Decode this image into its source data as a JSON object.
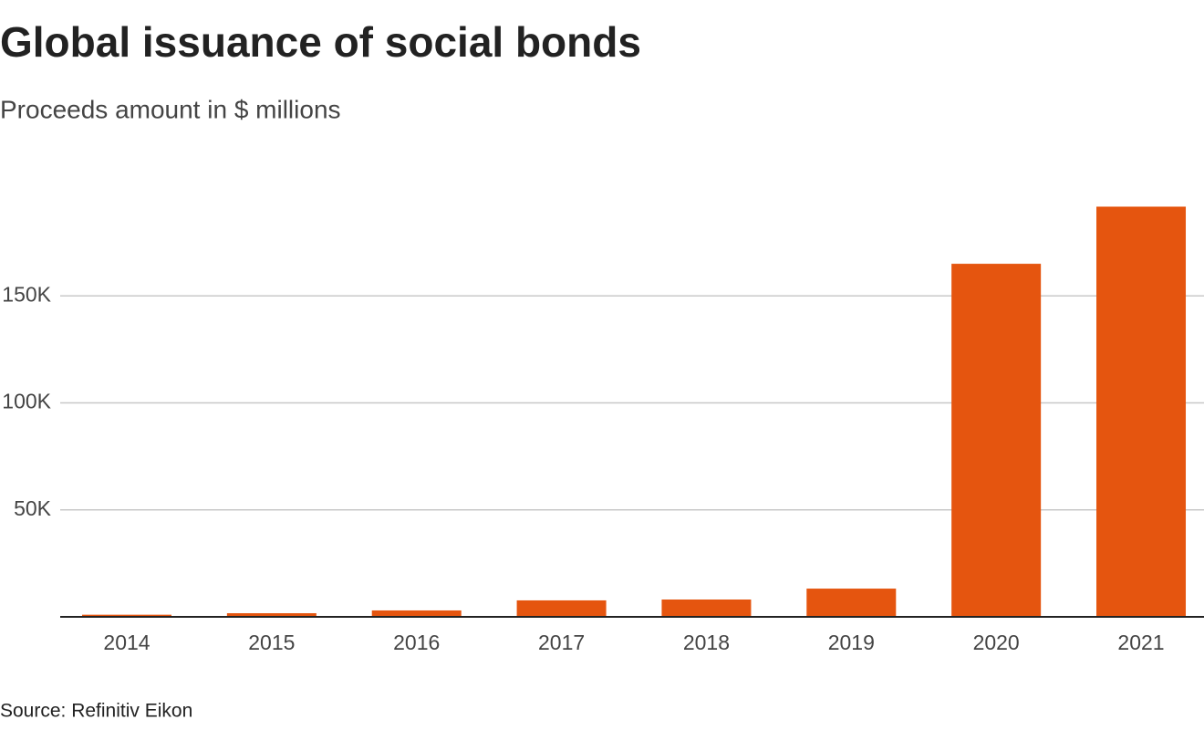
{
  "chart_data": {
    "type": "bar",
    "title": "Global issuance of social bonds",
    "subtitle": "Proceeds amount in $ millions",
    "categories": [
      "2014",
      "2015",
      "2016",
      "2017",
      "2018",
      "2019",
      "2020",
      "2021"
    ],
    "values": [
      1000,
      1700,
      3000,
      7700,
      8100,
      13200,
      165000,
      191700
    ],
    "color": "#e5550f",
    "ylim": [
      0,
      200000
    ],
    "yticks": [
      {
        "value": 50000,
        "label": "50K"
      },
      {
        "value": 100000,
        "label": "100K"
      },
      {
        "value": 150000,
        "label": "150K"
      }
    ],
    "grid": true,
    "source": "Source: Refinitiv Eikon"
  }
}
